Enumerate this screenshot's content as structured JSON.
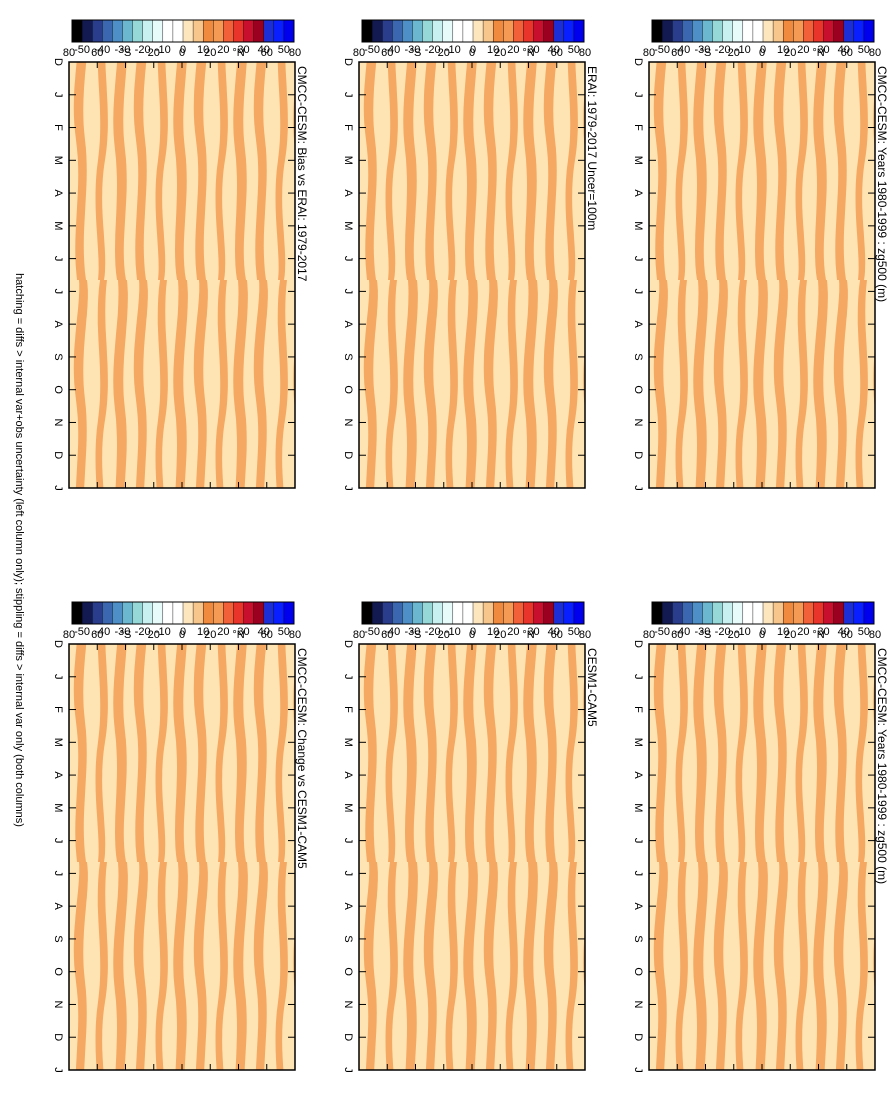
{
  "footnote": "hatching = diffs > internal var+obs uncertainty (left column only); stippling = diffs > internal var only (both columns)",
  "colorbar": {
    "labels": [
      "50",
      "40",
      "30",
      "20",
      "10",
      "0",
      "-10",
      "-20",
      "-30",
      "-40",
      "-50"
    ],
    "colors": [
      "#0000ee",
      "#0a1fff",
      "#1c2fd6",
      "#9b0021",
      "#c8102e",
      "#e8342a",
      "#f2603a",
      "#f59a55",
      "#ef8a3e",
      "#f6c68c",
      "#fde5bd",
      "#ffffff",
      "#ffffff",
      "#e8fbfb",
      "#c8f0f0",
      "#96d8d8",
      "#6ab7cf",
      "#4f8fc8",
      "#3b66b0",
      "#2a3c8c",
      "#131a52",
      "#000000"
    ]
  },
  "field_colors": {
    "high": "#f5a862",
    "low": "#ffe4b3"
  },
  "chart_data": [
    {
      "type": "heatmap",
      "title": "CMCC-CESM: Years 1980-1999 : zg500 (m)",
      "x_ticks": [
        "D",
        "J",
        "F",
        "M",
        "A",
        "M",
        "J",
        "J",
        "A",
        "S",
        "O",
        "N",
        "D",
        "J"
      ],
      "y_ticks": [
        "80",
        "60",
        "°N",
        "20",
        "0",
        "20",
        "°S",
        "60",
        "80"
      ],
      "color_range": [
        -50,
        50
      ],
      "approximate_field_range": [
        0,
        10
      ]
    },
    {
      "type": "heatmap",
      "title": "CMCC-CESM: Years 1980-1999 : zg500 (m)",
      "x_ticks": [
        "D",
        "J",
        "F",
        "M",
        "A",
        "M",
        "J",
        "J",
        "A",
        "S",
        "O",
        "N",
        "D",
        "J"
      ],
      "y_ticks": [
        "80",
        "60",
        "°N",
        "20",
        "0",
        "20",
        "°S",
        "60",
        "80"
      ],
      "color_range": [
        -50,
        50
      ],
      "approximate_field_range": [
        0,
        10
      ]
    },
    {
      "type": "heatmap",
      "title": "ERAI: 1979-2017 Uncer=100m",
      "x_ticks": [
        "D",
        "J",
        "F",
        "M",
        "A",
        "M",
        "J",
        "J",
        "A",
        "S",
        "O",
        "N",
        "D",
        "J"
      ],
      "y_ticks": [
        "80",
        "60",
        "°N",
        "20",
        "0",
        "20",
        "°S",
        "60",
        "80"
      ],
      "color_range": [
        -50,
        50
      ],
      "approximate_field_range": [
        0,
        10
      ]
    },
    {
      "type": "heatmap",
      "title": "CESM1-CAM5",
      "x_ticks": [
        "D",
        "J",
        "F",
        "M",
        "A",
        "M",
        "J",
        "J",
        "A",
        "S",
        "O",
        "N",
        "D",
        "J"
      ],
      "y_ticks": [
        "80",
        "60",
        "°N",
        "20",
        "0",
        "20",
        "°S",
        "60",
        "80"
      ],
      "color_range": [
        -50,
        50
      ],
      "approximate_field_range": [
        0,
        10
      ]
    },
    {
      "type": "heatmap",
      "title": "CMCC-CESM: Bias vs ERAI: 1979-2017",
      "x_ticks": [
        "D",
        "J",
        "F",
        "M",
        "A",
        "M",
        "J",
        "J",
        "A",
        "S",
        "O",
        "N",
        "D",
        "J"
      ],
      "y_ticks": [
        "80",
        "60",
        "°N",
        "20",
        "0",
        "20",
        "°S",
        "60",
        "80"
      ],
      "color_range": [
        -50,
        50
      ],
      "approximate_field_range": [
        0,
        10
      ]
    },
    {
      "type": "heatmap",
      "title": "CMCC-CESM: Change vs CESM1-CAM5",
      "x_ticks": [
        "D",
        "J",
        "F",
        "M",
        "A",
        "M",
        "J",
        "J",
        "A",
        "S",
        "O",
        "N",
        "D",
        "J"
      ],
      "y_ticks": [
        "80",
        "60",
        "°N",
        "20",
        "0",
        "20",
        "°S",
        "60",
        "80"
      ],
      "color_range": [
        -50,
        50
      ],
      "approximate_field_range": [
        0,
        10
      ]
    }
  ]
}
